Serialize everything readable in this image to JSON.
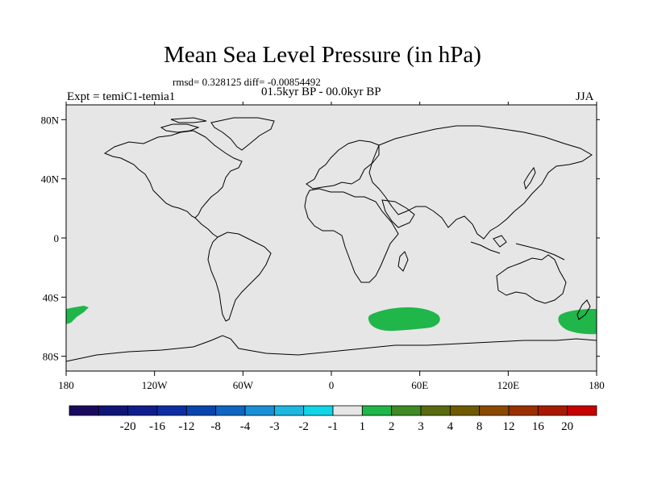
{
  "chart_data": {
    "type": "heatmap",
    "title": "Mean Sea Level Pressure (in hPa)",
    "stats": "rmsd= 0.328125 diff= -0.00854492",
    "period": "01.5kyr BP - 00.0kyr BP",
    "experiment": "Expt = temiC1-temia1",
    "season": "JJA",
    "x_range": [
      -180,
      180
    ],
    "y_range": [
      -90,
      90
    ],
    "x_ticks": [
      {
        "value": -180,
        "label": "180"
      },
      {
        "value": -120,
        "label": "120W"
      },
      {
        "value": -60,
        "label": "60W"
      },
      {
        "value": 0,
        "label": "0"
      },
      {
        "value": 60,
        "label": "60E"
      },
      {
        "value": 120,
        "label": "120E"
      },
      {
        "value": 180,
        "label": "180"
      }
    ],
    "y_ticks": [
      {
        "value": 80,
        "label": "80N"
      },
      {
        "value": 40,
        "label": "40N"
      },
      {
        "value": 0,
        "label": "0"
      },
      {
        "value": -40,
        "label": "40S"
      },
      {
        "value": -80,
        "label": "80S"
      }
    ],
    "background_bin": "-1 to 1",
    "anomaly_regions": [
      {
        "name": "south-pacific-west-edge",
        "bin": "1 to 2",
        "approx_lon_range": [
          -180,
          -163
        ],
        "approx_lat_range": [
          -58,
          -45
        ]
      },
      {
        "name": "southern-indian-ocean",
        "bin": "1 to 2",
        "approx_lon_range": [
          27,
          77
        ],
        "approx_lat_range": [
          -61,
          -50
        ]
      },
      {
        "name": "south-pacific-east-of-nz",
        "bin": "1 to 2",
        "approx_lon_range": [
          153,
          180
        ],
        "approx_lat_range": [
          -65,
          -48
        ]
      }
    ],
    "colorbar": {
      "labels": [
        "-20",
        "-16",
        "-12",
        "-8",
        "-4",
        "-3",
        "-2",
        "-1",
        "1",
        "2",
        "3",
        "4",
        "8",
        "12",
        "16",
        "20"
      ],
      "colors": [
        "#1a0a5e",
        "#0e1575",
        "#0f1e8c",
        "#0d2ea3",
        "#0a45ad",
        "#0f66c0",
        "#1a8fd6",
        "#1eb7e0",
        "#11d4e6",
        "#e6e6e6",
        "#20b64a",
        "#3f8a25",
        "#5a6a10",
        "#6f5a00",
        "#8a4b00",
        "#9a3000",
        "#a81a00",
        "#c80000"
      ]
    }
  }
}
